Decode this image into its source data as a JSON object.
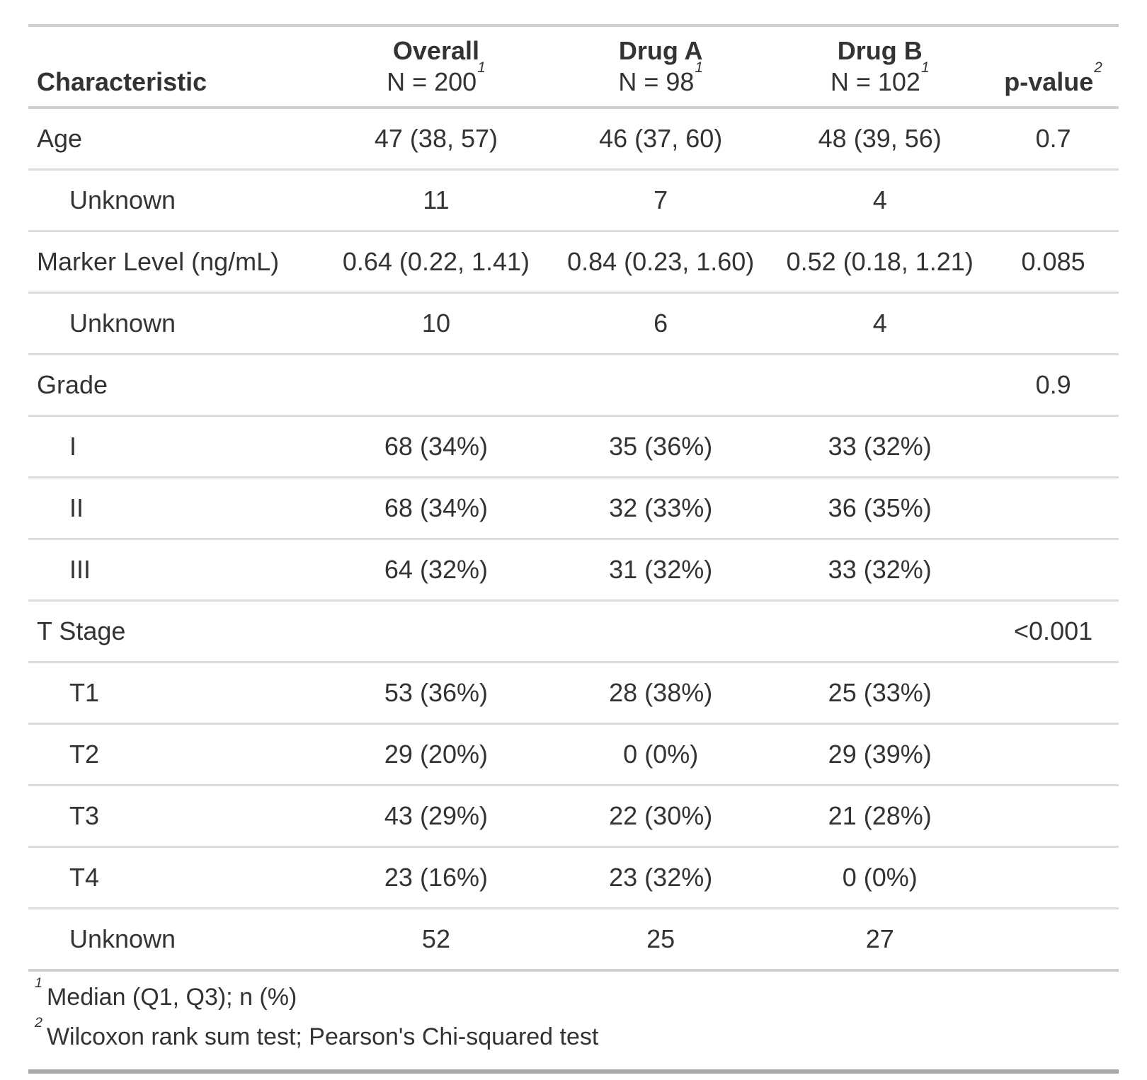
{
  "table": {
    "header": {
      "characteristic_label": "Characteristic",
      "groups": [
        {
          "label": "Overall",
          "n": "N = 200",
          "footnote_mark": "1"
        },
        {
          "label": "Drug A",
          "n": "N = 98",
          "footnote_mark": "1"
        },
        {
          "label": "Drug B",
          "n": "N = 102",
          "footnote_mark": "1"
        }
      ],
      "p_value": {
        "label": "p-value",
        "footnote_mark": "2"
      }
    },
    "rows": [
      {
        "label": "Age",
        "indent": false,
        "overall": "47 (38, 57)",
        "drug_a": "46 (37, 60)",
        "drug_b": "48 (39, 56)",
        "p": "0.7"
      },
      {
        "label": "Unknown",
        "indent": true,
        "overall": "11",
        "drug_a": "7",
        "drug_b": "4",
        "p": ""
      },
      {
        "label": "Marker Level (ng/mL)",
        "indent": false,
        "overall": "0.64 (0.22, 1.41)",
        "drug_a": "0.84 (0.23, 1.60)",
        "drug_b": "0.52 (0.18, 1.21)",
        "p": "0.085"
      },
      {
        "label": "Unknown",
        "indent": true,
        "overall": "10",
        "drug_a": "6",
        "drug_b": "4",
        "p": ""
      },
      {
        "label": "Grade",
        "indent": false,
        "overall": "",
        "drug_a": "",
        "drug_b": "",
        "p": "0.9"
      },
      {
        "label": "I",
        "indent": true,
        "overall": "68 (34%)",
        "drug_a": "35 (36%)",
        "drug_b": "33 (32%)",
        "p": ""
      },
      {
        "label": "II",
        "indent": true,
        "overall": "68 (34%)",
        "drug_a": "32 (33%)",
        "drug_b": "36 (35%)",
        "p": ""
      },
      {
        "label": "III",
        "indent": true,
        "overall": "64 (32%)",
        "drug_a": "31 (32%)",
        "drug_b": "33 (32%)",
        "p": ""
      },
      {
        "label": "T Stage",
        "indent": false,
        "overall": "",
        "drug_a": "",
        "drug_b": "",
        "p": "<0.001"
      },
      {
        "label": "T1",
        "indent": true,
        "overall": "53 (36%)",
        "drug_a": "28 (38%)",
        "drug_b": "25 (33%)",
        "p": ""
      },
      {
        "label": "T2",
        "indent": true,
        "overall": "29 (20%)",
        "drug_a": "0 (0%)",
        "drug_b": "29 (39%)",
        "p": ""
      },
      {
        "label": "T3",
        "indent": true,
        "overall": "43 (29%)",
        "drug_a": "22 (30%)",
        "drug_b": "21 (28%)",
        "p": ""
      },
      {
        "label": "T4",
        "indent": true,
        "overall": "23 (16%)",
        "drug_a": "23 (32%)",
        "drug_b": "0 (0%)",
        "p": ""
      },
      {
        "label": "Unknown",
        "indent": true,
        "overall": "52",
        "drug_a": "25",
        "drug_b": "27",
        "p": ""
      }
    ],
    "footnotes": [
      {
        "mark": "1",
        "text": "Median (Q1, Q3); n (%)"
      },
      {
        "mark": "2",
        "text": "Wilcoxon rank sum test; Pearson's Chi-squared test"
      }
    ],
    "colors": {
      "text": "#333333",
      "border_light": "#dcdcdc",
      "border_strong": "#d0d0d0",
      "border_dark": "#a8a8a8",
      "background": "#ffffff"
    }
  }
}
